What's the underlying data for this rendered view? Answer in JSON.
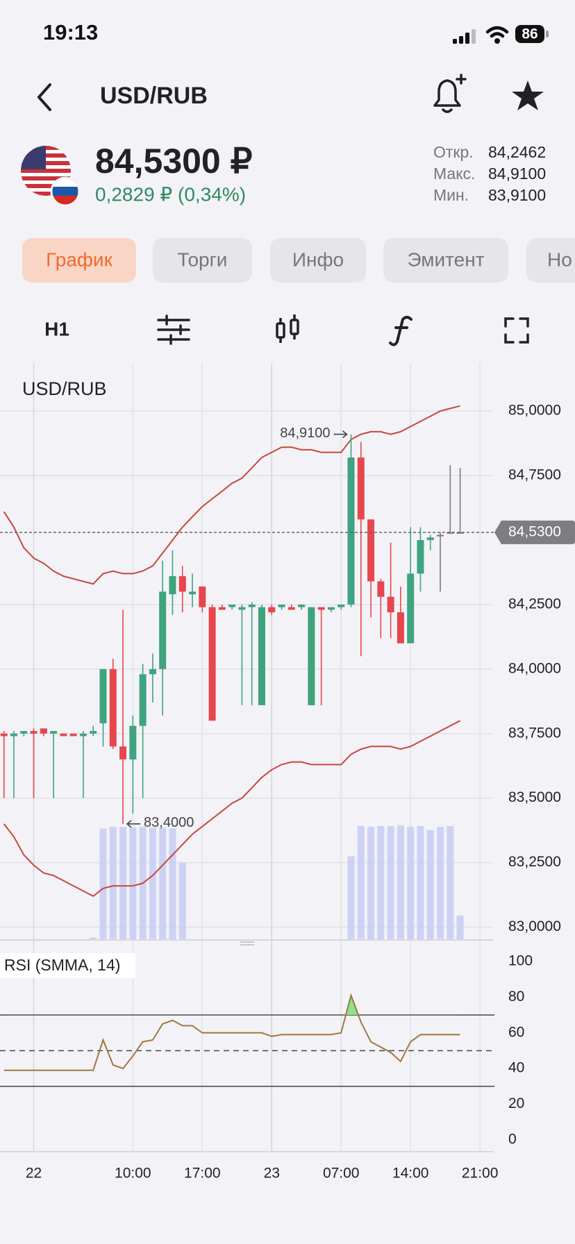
{
  "status": {
    "time": "19:13",
    "battery": "86"
  },
  "header": {
    "title": "USD/RUB"
  },
  "quote": {
    "price": "84,5300 ₽",
    "change": "0,2829 ₽ (0,34%)",
    "stats": [
      {
        "label": "Откр.",
        "value": "84,2462"
      },
      {
        "label": "Макс.",
        "value": "84,9100"
      },
      {
        "label": "Мин.",
        "value": "83,9100"
      }
    ]
  },
  "tabs": [
    {
      "label": "График",
      "active": true
    },
    {
      "label": "Торги"
    },
    {
      "label": "Инфо"
    },
    {
      "label": "Эмитент"
    },
    {
      "label": "Но"
    }
  ],
  "toolbar": {
    "interval": "H1"
  },
  "chart": {
    "type": "candlestick",
    "title": "USD/RUB",
    "ylim": [
      82.953,
      85.186
    ],
    "yticks": [
      {
        "value": 85,
        "label": "85,0000"
      },
      {
        "value": 84.75,
        "label": "84,7500"
      },
      {
        "value": 84.25,
        "label": "84,2500"
      },
      {
        "value": 84,
        "label": "84,0000"
      },
      {
        "value": 83.75,
        "label": "83,7500"
      },
      {
        "value": 83.5,
        "label": "83,5000"
      },
      {
        "value": 83.25,
        "label": "83,2500"
      },
      {
        "value": 83,
        "label": "83,0000"
      }
    ],
    "xticks": [
      "22",
      "10:00",
      "17:00",
      "23",
      "07:00",
      "14:00",
      "21:00"
    ],
    "grid": true,
    "colors": {
      "up": "#3fa37f",
      "down": "#e5474c",
      "flat": "#7a7a7a"
    },
    "open": [
      83.75,
      83.74,
      83.75,
      83.76,
      83.77,
      83.75,
      83.75,
      83.75,
      83.74,
      83.75,
      83.79,
      84.0,
      83.7,
      83.65,
      83.78,
      83.98,
      84.0,
      84.29,
      84.36,
      84.29,
      84.32,
      84.24,
      84.24,
      84.24,
      84.23,
      84.24,
      83.86,
      84.24,
      84.24,
      84.24,
      84.24,
      83.86,
      84.24,
      84.23,
      84.24,
      84.25,
      84.82,
      84.58,
      84.34,
      84.28,
      84.22,
      84.1,
      84.37,
      84.5,
      84.52,
      84.53,
      84.53
    ],
    "high": [
      83.76,
      83.76,
      83.76,
      83.77,
      83.77,
      83.76,
      83.75,
      83.75,
      83.76,
      83.78,
      84.0,
      84.04,
      84.23,
      83.82,
      84.02,
      84.06,
      84.42,
      84.46,
      84.4,
      84.37,
      84.32,
      84.25,
      84.25,
      84.25,
      84.25,
      84.26,
      84.25,
      84.25,
      84.25,
      84.25,
      84.25,
      84.24,
      84.24,
      84.24,
      84.25,
      84.91,
      84.88,
      84.58,
      84.35,
      84.49,
      84.32,
      84.55,
      84.55,
      84.52,
      84.53,
      84.79,
      84.78
    ],
    "low": [
      83.5,
      83.5,
      83.74,
      83.5,
      83.74,
      83.5,
      83.74,
      83.74,
      83.5,
      83.74,
      83.7,
      83.69,
      83.4,
      83.44,
      83.5,
      83.87,
      83.82,
      84.21,
      84.22,
      84.24,
      84.22,
      83.8,
      84.23,
      84.23,
      83.86,
      83.86,
      83.86,
      84.21,
      84.23,
      84.23,
      84.23,
      83.86,
      83.86,
      84.22,
      84.23,
      84.24,
      84.05,
      84.2,
      84.12,
      84.12,
      84.1,
      84.1,
      84.3,
      84.46,
      84.3,
      84.53,
      84.53
    ],
    "close": [
      83.74,
      83.75,
      83.76,
      83.75,
      83.75,
      83.76,
      83.74,
      83.74,
      83.75,
      83.76,
      84.0,
      83.7,
      83.65,
      83.78,
      83.98,
      84.0,
      84.3,
      84.36,
      84.3,
      84.3,
      84.24,
      83.8,
      84.23,
      84.25,
      84.24,
      84.25,
      84.24,
      84.22,
      84.25,
      84.23,
      84.25,
      84.24,
      84.23,
      84.24,
      84.25,
      84.82,
      84.58,
      84.34,
      84.28,
      84.22,
      84.1,
      84.37,
      84.5,
      84.51,
      84.52,
      84.53,
      84.53
    ],
    "bands": {
      "color": "#c8473d",
      "upper": [
        84.61,
        84.55,
        84.47,
        84.43,
        84.41,
        84.38,
        84.36,
        84.35,
        84.34,
        84.33,
        84.37,
        84.38,
        84.37,
        84.37,
        84.38,
        84.4,
        84.45,
        84.5,
        84.55,
        84.59,
        84.63,
        84.66,
        84.69,
        84.72,
        84.74,
        84.78,
        84.82,
        84.84,
        84.86,
        84.86,
        84.85,
        84.85,
        84.84,
        84.84,
        84.84,
        84.89,
        84.91,
        84.92,
        84.92,
        84.91,
        84.92,
        84.94,
        84.96,
        84.98,
        85.0,
        85.01,
        85.02
      ],
      "lower": [
        83.4,
        83.35,
        83.28,
        83.24,
        83.21,
        83.2,
        83.18,
        83.16,
        83.14,
        83.12,
        83.15,
        83.16,
        83.16,
        83.16,
        83.17,
        83.2,
        83.24,
        83.28,
        83.32,
        83.36,
        83.39,
        83.42,
        83.45,
        83.48,
        83.5,
        83.54,
        83.58,
        83.61,
        83.63,
        83.64,
        83.64,
        83.63,
        83.63,
        83.63,
        83.63,
        83.67,
        83.69,
        83.7,
        83.7,
        83.7,
        83.69,
        83.7,
        83.72,
        83.74,
        83.76,
        83.78,
        83.8
      ]
    },
    "volume": {
      "color": "#c7ccf4",
      "lim": [
        0,
        150
      ],
      "values": [
        0,
        0,
        0,
        0,
        0,
        0,
        0,
        0,
        0,
        2,
        140,
        142,
        142,
        141,
        142,
        141,
        141,
        140,
        97,
        0,
        0,
        0,
        0,
        0,
        0,
        0,
        0,
        0,
        0,
        0,
        0,
        0,
        0,
        0,
        0,
        105,
        143,
        142,
        143,
        143,
        144,
        142,
        143,
        138,
        142,
        143,
        30
      ]
    },
    "last": {
      "value": 84.53,
      "label": "84,5300"
    },
    "annotations": [
      {
        "value": 84.91,
        "label": "84,9100"
      },
      {
        "value": 83.4,
        "label": "83,4000"
      }
    ]
  },
  "rsi": {
    "type": "line",
    "title": "RSI (SMMA, 14)",
    "color": "#a0773d",
    "overbought_color": "#8ee28e",
    "ylim": [
      0,
      100
    ],
    "yticks": [
      0,
      20,
      40,
      60,
      80,
      100
    ],
    "levels": [
      30,
      70
    ],
    "midline": 50,
    "values": [
      39,
      39,
      39,
      39,
      39,
      39,
      39,
      39,
      39,
      39,
      56,
      42,
      40,
      47,
      55,
      56,
      65,
      67,
      64,
      64,
      60,
      60,
      60,
      60,
      60,
      60,
      60,
      58,
      59,
      59,
      59,
      59,
      59,
      59,
      60,
      81,
      66,
      55,
      52,
      49,
      44,
      55,
      59,
      59,
      59,
      59,
      59
    ]
  }
}
